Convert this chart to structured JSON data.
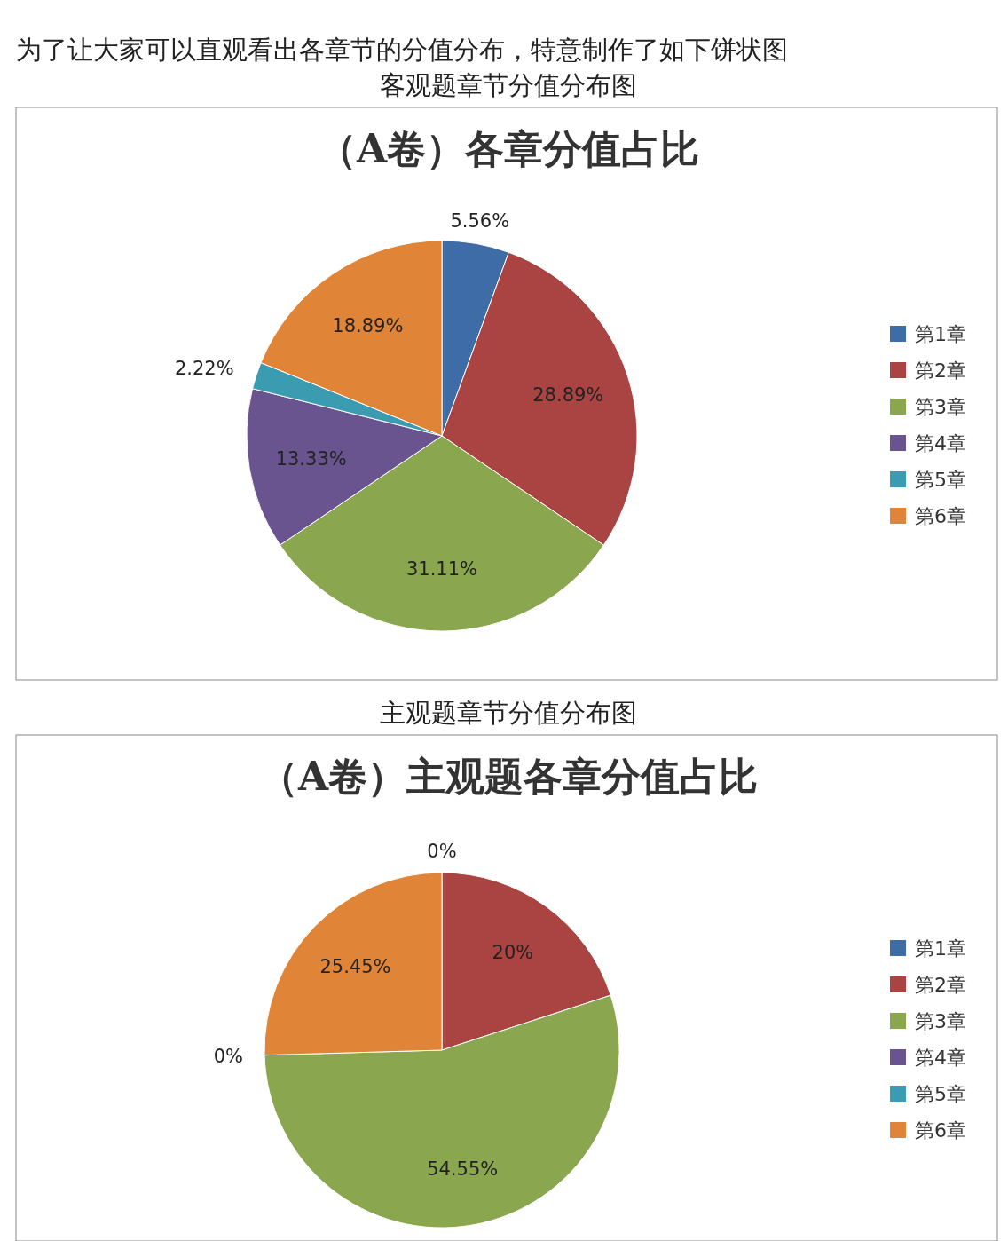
{
  "chart_data": [
    {
      "type": "pie",
      "title": "（A卷）各章分值占比",
      "annotations": [
        "为了让大家可以直观看出各章节的分值分布，特意制作了如下饼状图",
        "客观题章节分值分布图"
      ],
      "categories": [
        "第1章",
        "第2章",
        "第3章",
        "第4章",
        "第5章",
        "第6章"
      ],
      "values": [
        5.56,
        28.89,
        31.11,
        13.33,
        2.22,
        18.89
      ],
      "value_labels": [
        "5.56%",
        "28.89%",
        "31.11%",
        "13.33%",
        "2.22%",
        "18.89%"
      ],
      "colors": [
        "#3d6ca6",
        "#a94442",
        "#8aa64f",
        "#6a548f",
        "#3b9bb0",
        "#e08437"
      ],
      "legend": "right"
    },
    {
      "type": "pie",
      "title": "（A卷）主观题各章分值占比",
      "annotations": [
        "主观题章节分值分布图"
      ],
      "categories": [
        "第1章",
        "第2章",
        "第3章",
        "第4章",
        "第5章",
        "第6章"
      ],
      "values": [
        0,
        20,
        54.55,
        0,
        0,
        25.45
      ],
      "value_labels": [
        "0%",
        "20%",
        "54.55%",
        null,
        "0%",
        "25.45%"
      ],
      "colors": [
        "#3d6ca6",
        "#a94442",
        "#8aa64f",
        "#6a548f",
        "#3b9bb0",
        "#e08437"
      ],
      "legend": "right"
    }
  ]
}
